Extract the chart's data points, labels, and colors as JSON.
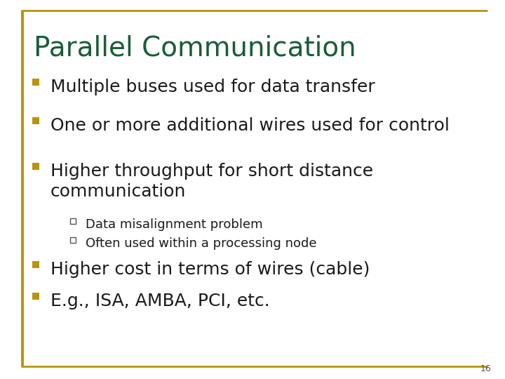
{
  "title": "Parallel Communication",
  "title_color": "#1a5c38",
  "title_fontsize": 28,
  "background_color": "#ffffff",
  "border_color": "#b8960c",
  "bullet_color": "#b8960c",
  "text_color": "#1a1a1a",
  "bullet_items": [
    "Multiple buses used for data transfer",
    "One or more additional wires used for control",
    "Higher throughput for short distance\ncommunication"
  ],
  "sub_bullet_items": [
    "Data misalignment problem",
    "Often used within a processing node"
  ],
  "extra_bullet_items": [
    "Higher cost in terms of wires (cable)",
    "E.g., ISA, AMBA, PCI, etc."
  ],
  "bullet_fontsize": 18,
  "sub_bullet_fontsize": 13,
  "page_number": "16",
  "left_bar_color": "#b8960c"
}
